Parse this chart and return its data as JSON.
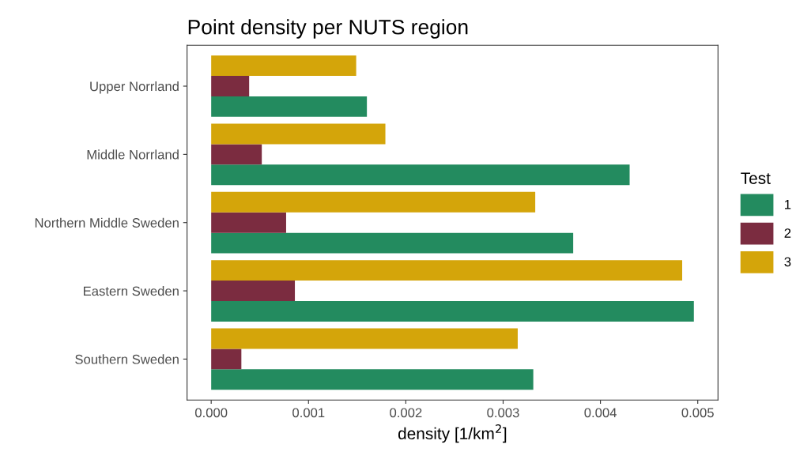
{
  "chart_data": {
    "type": "bar",
    "orientation": "horizontal",
    "title": "Point density per NUTS region",
    "xlabel": "density [1/km$^{2}$]",
    "legend_title": "Test",
    "legend": "right",
    "grid": false,
    "categories": [
      "Upper Norrland",
      "Middle Norrland",
      "Northern Middle Sweden",
      "Eastern Sweden",
      "Southern Sweden"
    ],
    "series": [
      {
        "name": "1",
        "color": "#238b5f",
        "values": [
          0.0016,
          0.0043,
          0.00372,
          0.00496,
          0.00331
        ]
      },
      {
        "name": "2",
        "color": "#7b2c40",
        "values": [
          0.00039,
          0.00052,
          0.00077,
          0.00086,
          0.00031
        ]
      },
      {
        "name": "3",
        "color": "#d4a50a",
        "values": [
          0.00149,
          0.00179,
          0.00333,
          0.00484,
          0.00315
        ]
      }
    ],
    "xlim": [
      -0.000248,
      0.005208
    ],
    "xticks": [
      {
        "value": 0,
        "label": "0.000"
      },
      {
        "value": 0.001,
        "label": "0.001"
      },
      {
        "value": 0.002,
        "label": "0.002"
      },
      {
        "value": 0.003,
        "label": "0.003"
      },
      {
        "value": 0.004,
        "label": "0.004"
      },
      {
        "value": 0.005,
        "label": "0.005"
      }
    ]
  }
}
